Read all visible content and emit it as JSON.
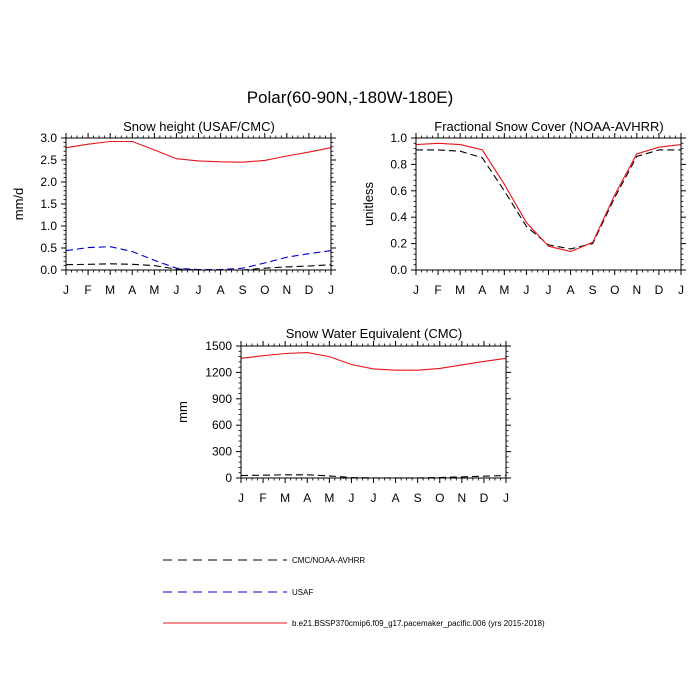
{
  "figure_title": "Polar(60-90N,-180W-180E)",
  "legend": [
    {
      "label": "CMC/NOAA-AVHRR",
      "color": "#000000",
      "dash": "dashed"
    },
    {
      "label": "USAF",
      "color": "#0000cc",
      "dash": "dashed"
    },
    {
      "label": "b.e21.BSSP370cmip6.f09_g17.pacemaker_pacific.006 (yrs 2015-2018)",
      "color": "#e8151b",
      "dash": "solid"
    }
  ],
  "chart_data": [
    {
      "type": "line",
      "title": "Snow height (USAF/CMC)",
      "ylabel": "mm/d",
      "xlabel": "",
      "categories": [
        "J",
        "F",
        "M",
        "A",
        "M",
        "J",
        "J",
        "A",
        "S",
        "O",
        "N",
        "D",
        "J"
      ],
      "ylim": [
        0,
        3.0
      ],
      "yticks": [
        0,
        0.5,
        1.0,
        1.5,
        2.0,
        2.5,
        3.0
      ],
      "ytick_labels": [
        "0.0",
        "0.5",
        "1.0",
        "1.5",
        "2.0",
        "2.5",
        "3.0"
      ],
      "series": [
        {
          "name": "b.e21.BSSP370cmip6.f09_g17.pacemaker_pacific.006 (yrs 2015-2018)",
          "color": "#e8151b",
          "dash": "solid",
          "values": [
            2.78,
            2.86,
            2.92,
            2.92,
            2.73,
            2.53,
            2.48,
            2.46,
            2.45,
            2.49,
            2.59,
            2.68,
            2.78
          ]
        },
        {
          "name": "USAF",
          "color": "#0000cc",
          "dash": "dashed",
          "values": [
            0.44,
            0.51,
            0.53,
            0.42,
            0.22,
            0.04,
            0.01,
            0.01,
            0.04,
            0.16,
            0.29,
            0.37,
            0.44
          ]
        },
        {
          "name": "CMC/NOAA-AVHRR",
          "color": "#000000",
          "dash": "dashed",
          "values": [
            0.12,
            0.13,
            0.14,
            0.13,
            0.1,
            0.02,
            0.0,
            0.0,
            0.0,
            0.04,
            0.07,
            0.09,
            0.12
          ]
        }
      ]
    },
    {
      "type": "line",
      "title": "Fractional Snow Cover (NOAA-AVHRR)",
      "ylabel": "unitless",
      "xlabel": "",
      "categories": [
        "J",
        "F",
        "M",
        "A",
        "M",
        "J",
        "J",
        "A",
        "S",
        "O",
        "N",
        "D",
        "J"
      ],
      "ylim": [
        0,
        1.0
      ],
      "yticks": [
        0,
        0.2,
        0.4,
        0.6,
        0.8,
        1.0
      ],
      "ytick_labels": [
        "0.0",
        "0.2",
        "0.4",
        "0.6",
        "0.8",
        "1.0"
      ],
      "series": [
        {
          "name": "b.e21.BSSP370cmip6.f09_g17.pacemaker_pacific.006 (yrs 2015-2018)",
          "color": "#e8151b",
          "dash": "solid",
          "values": [
            0.95,
            0.96,
            0.95,
            0.91,
            0.65,
            0.36,
            0.18,
            0.14,
            0.21,
            0.57,
            0.88,
            0.93,
            0.95
          ]
        },
        {
          "name": "CMC/NOAA-AVHRR",
          "color": "#000000",
          "dash": "dashed",
          "values": [
            0.91,
            0.91,
            0.9,
            0.85,
            0.6,
            0.33,
            0.19,
            0.16,
            0.2,
            0.55,
            0.86,
            0.91,
            0.91
          ]
        }
      ]
    },
    {
      "type": "line",
      "title": "Snow Water Equivalent (CMC)",
      "ylabel": "mm",
      "xlabel": "",
      "categories": [
        "J",
        "F",
        "M",
        "A",
        "M",
        "J",
        "J",
        "A",
        "S",
        "O",
        "N",
        "D",
        "J"
      ],
      "ylim": [
        0,
        1500
      ],
      "yticks": [
        0,
        300,
        600,
        900,
        1200,
        1500
      ],
      "ytick_labels": [
        "0",
        "300",
        "600",
        "900",
        "1200",
        "1500"
      ],
      "series": [
        {
          "name": "b.e21.BSSP370cmip6.f09_g17.pacemaker_pacific.006 (yrs 2015-2018)",
          "color": "#e8151b",
          "dash": "solid",
          "values": [
            1360,
            1390,
            1415,
            1425,
            1380,
            1290,
            1240,
            1225,
            1225,
            1245,
            1285,
            1325,
            1360
          ]
        },
        {
          "name": "CMC/NOAA-AVHRR",
          "color": "#000000",
          "dash": "dashed",
          "values": [
            28,
            32,
            36,
            36,
            24,
            6,
            1,
            1,
            1,
            6,
            13,
            20,
            28
          ]
        }
      ]
    }
  ]
}
